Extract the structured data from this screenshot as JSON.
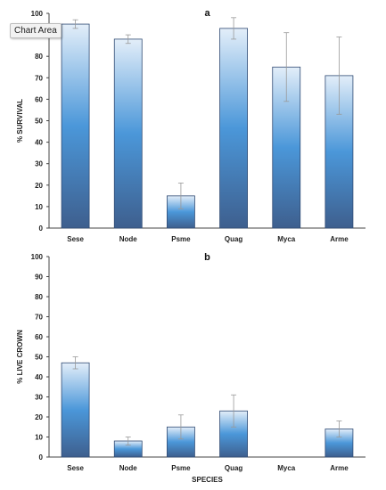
{
  "tooltip": {
    "label": "Chart Area"
  },
  "colors": {
    "bar_top": "#e3eef9",
    "bar_mid": "#4b97d9",
    "bar_bottom": "#3e5f8e",
    "error_bar": "#999999",
    "axis": "#444444"
  },
  "chart_data": [
    {
      "type": "bar",
      "title": "a",
      "xlabel": "",
      "ylabel": "% SURVIVAL",
      "ylim": [
        0,
        100
      ],
      "yticks": [
        0,
        10,
        20,
        30,
        40,
        50,
        60,
        70,
        80,
        90,
        100
      ],
      "grid": false,
      "categories": [
        "Sese",
        "Node",
        "Psme",
        "Quag",
        "Myca",
        "Arme"
      ],
      "values": [
        95,
        88,
        15,
        93,
        75,
        71
      ],
      "errors": [
        2,
        2,
        6,
        5,
        16,
        18
      ]
    },
    {
      "type": "bar",
      "title": "b",
      "xlabel": "SPECIES",
      "ylabel": "% LIVE CROWN",
      "ylim": [
        0,
        100
      ],
      "yticks": [
        0,
        10,
        20,
        30,
        40,
        50,
        60,
        70,
        80,
        90,
        100
      ],
      "grid": false,
      "categories": [
        "Sese",
        "Node",
        "Psme",
        "Quag",
        "Myca",
        "Arme"
      ],
      "values": [
        47,
        8,
        15,
        23,
        0,
        14
      ],
      "errors": [
        3,
        2,
        6,
        8,
        0,
        4
      ]
    }
  ]
}
